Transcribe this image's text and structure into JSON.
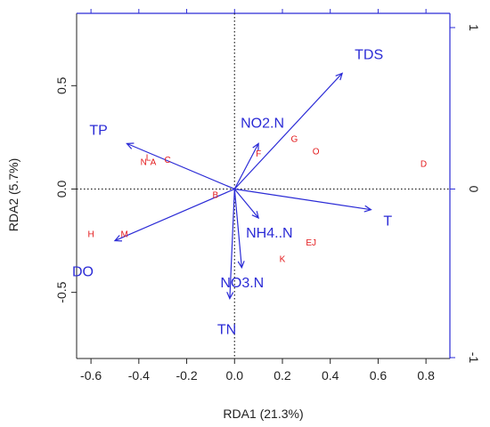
{
  "chart_data": {
    "type": "scatter",
    "xlabel": "RDA1 (21.3%)",
    "ylabel": "RDA2 (5.7%)",
    "xlim": [
      -0.66,
      0.9
    ],
    "ylim": [
      -0.82,
      0.85
    ],
    "x_ticks": [
      "-0.6",
      "-0.4",
      "-0.2",
      "0.0",
      "0.2",
      "0.4",
      "0.6",
      "0.8"
    ],
    "y_ticks": [
      "-0.5",
      "0.0",
      "0.5"
    ],
    "right_ticks": [
      "-1",
      "0",
      "1"
    ],
    "top_axis_color": "#2b2bd6",
    "arrow_color": "#2b2bd6",
    "site_color": "#e31a1c",
    "arrows": [
      {
        "label": "TDS",
        "x": 0.45,
        "y": 0.56
      },
      {
        "label": "NO2.N",
        "x": 0.1,
        "y": 0.22
      },
      {
        "label": "TP",
        "x": -0.45,
        "y": 0.22
      },
      {
        "label": "T",
        "x": 0.57,
        "y": -0.1
      },
      {
        "label": "NH4..N",
        "x": 0.1,
        "y": -0.14
      },
      {
        "label": "DO",
        "x": -0.5,
        "y": -0.25
      },
      {
        "label": "NO3.N",
        "x": 0.03,
        "y": -0.38
      },
      {
        "label": "TN",
        "x": -0.02,
        "y": -0.53
      }
    ],
    "sites": [
      {
        "label": "N",
        "x": -0.38,
        "y": 0.13
      },
      {
        "label": "A",
        "x": -0.34,
        "y": 0.13
      },
      {
        "label": "L",
        "x": -0.36,
        "y": 0.15
      },
      {
        "label": "C",
        "x": -0.28,
        "y": 0.14
      },
      {
        "label": "B",
        "x": -0.08,
        "y": -0.03
      },
      {
        "label": "F",
        "x": 0.1,
        "y": 0.17
      },
      {
        "label": "G",
        "x": 0.25,
        "y": 0.24
      },
      {
        "label": "O",
        "x": 0.34,
        "y": 0.18
      },
      {
        "label": "D",
        "x": 0.79,
        "y": 0.12
      },
      {
        "label": "H",
        "x": -0.6,
        "y": -0.22
      },
      {
        "label": "M",
        "x": -0.46,
        "y": -0.22
      },
      {
        "label": "EJ",
        "x": 0.32,
        "y": -0.26
      },
      {
        "label": "K",
        "x": 0.2,
        "y": -0.34
      }
    ]
  }
}
